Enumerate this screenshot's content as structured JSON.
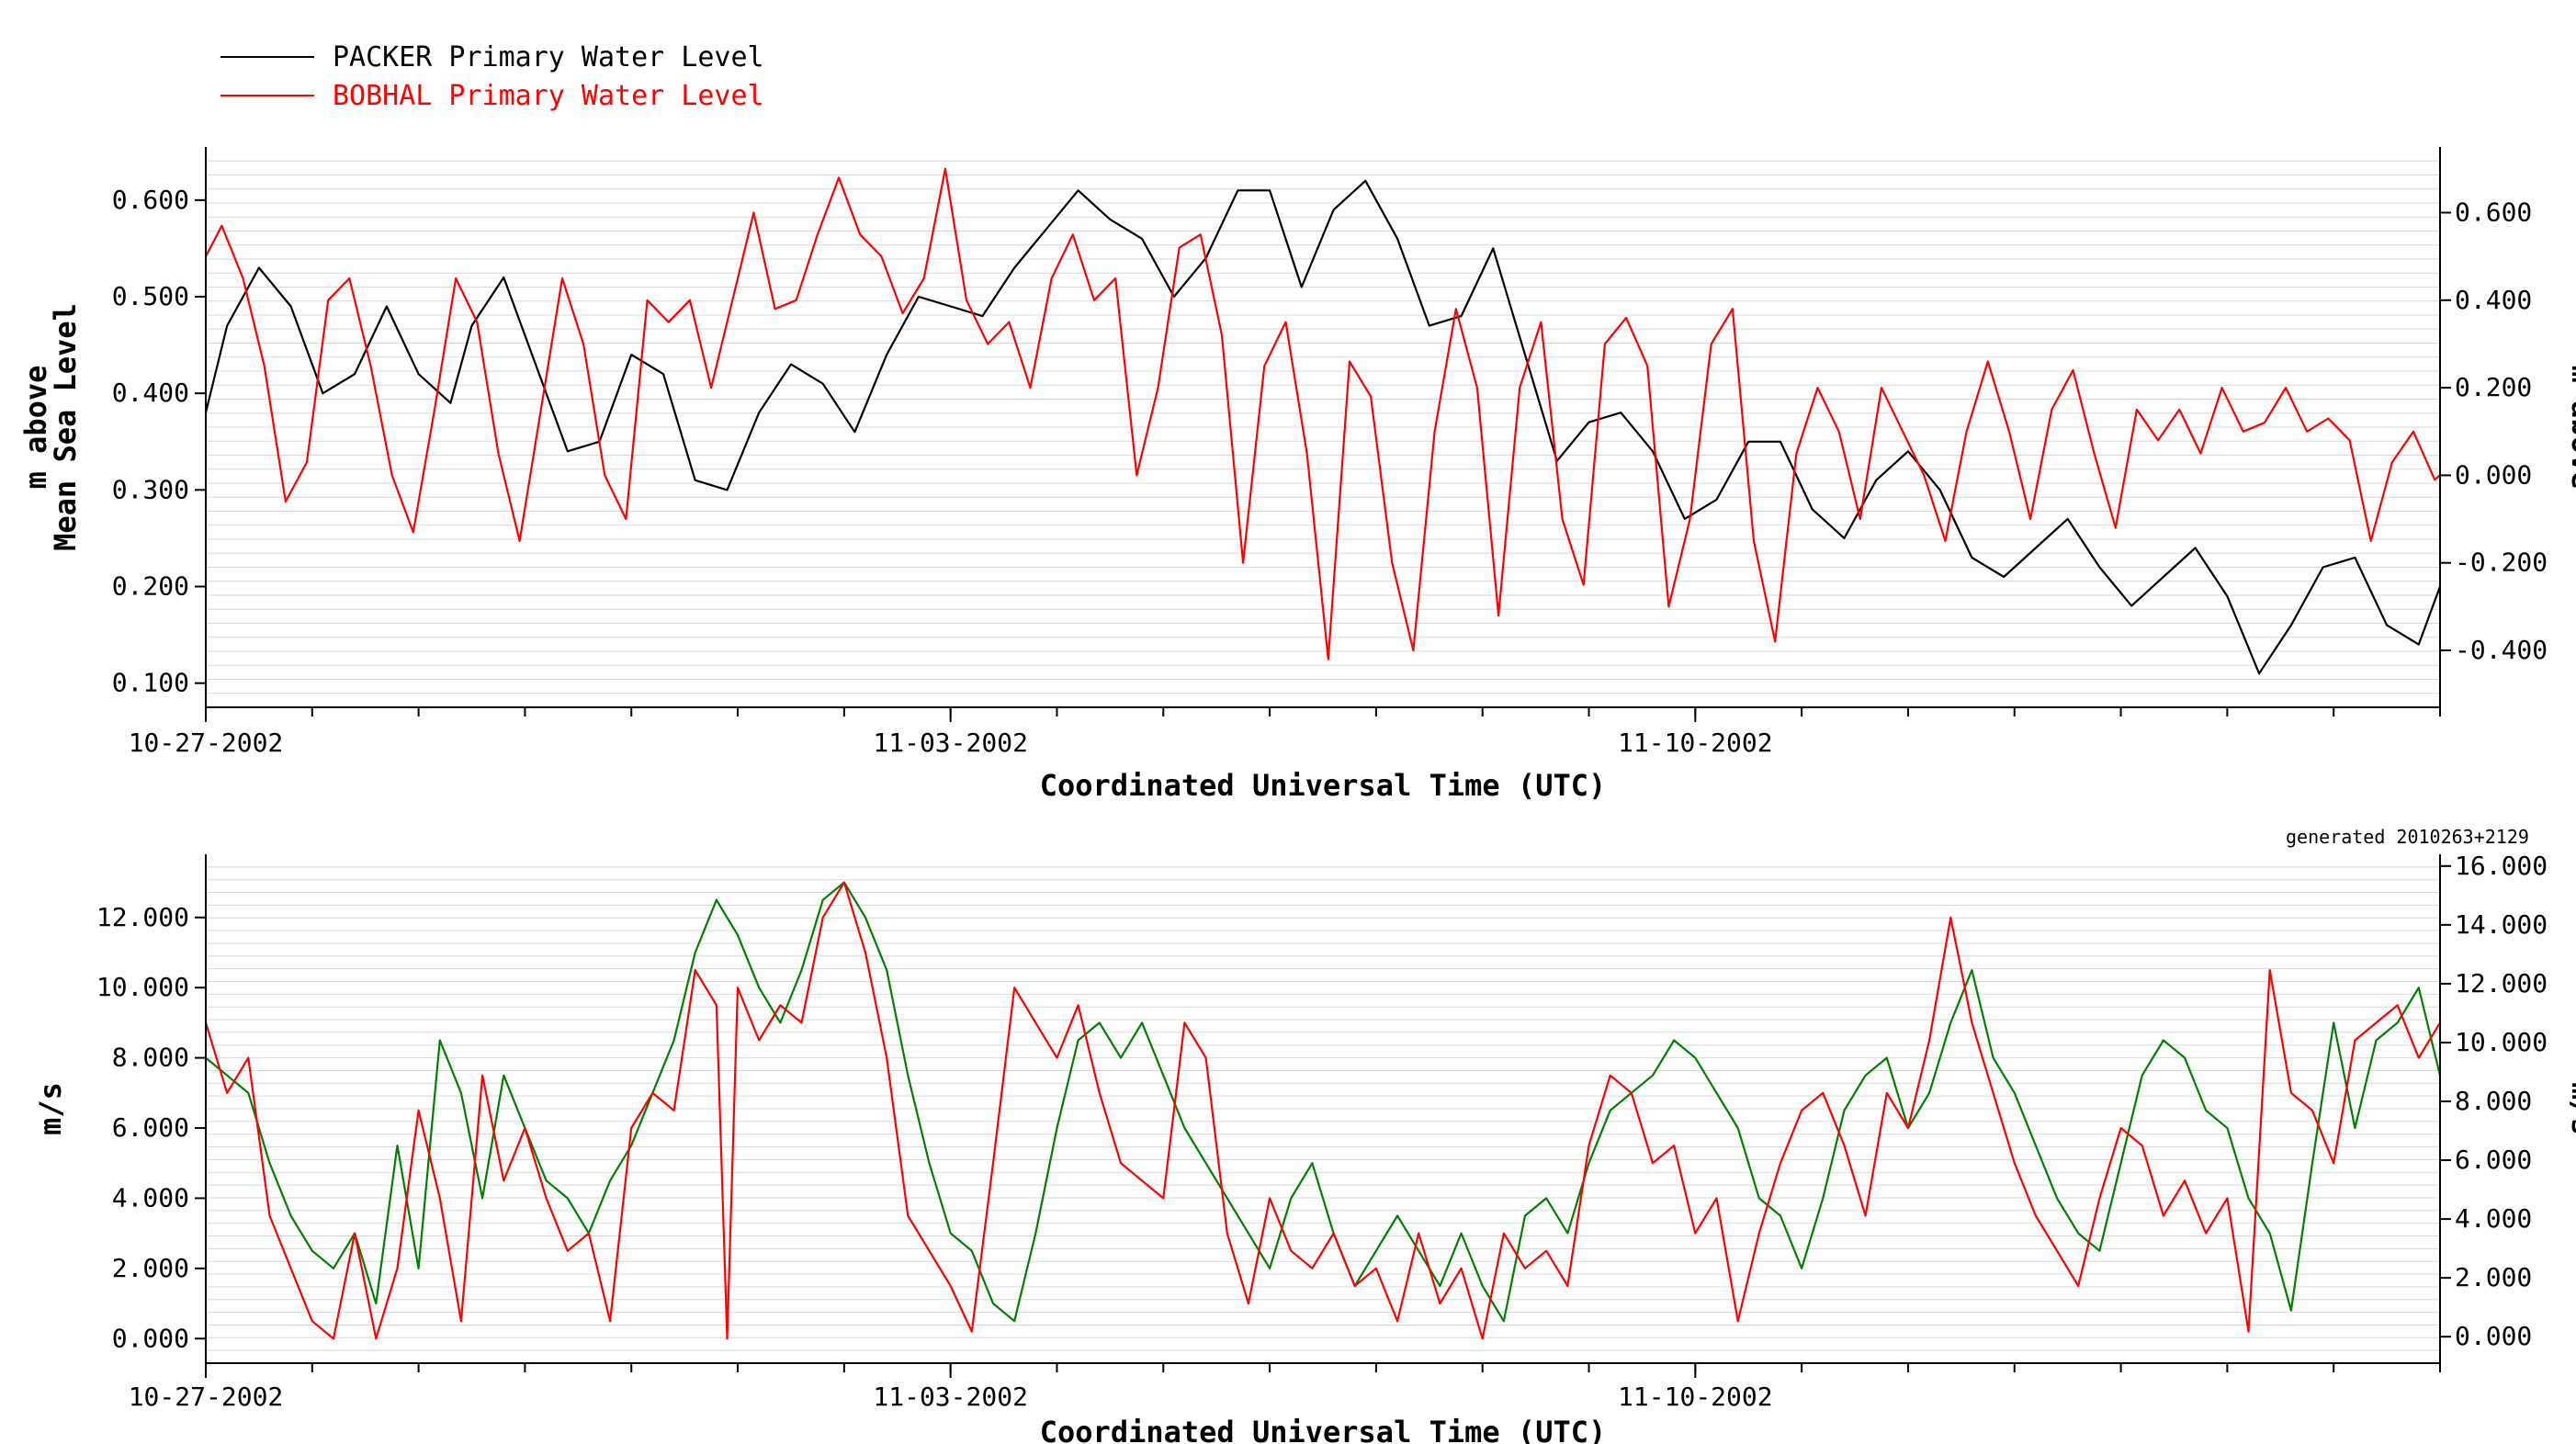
{
  "generated_note": "generated 2010263+2129",
  "colors": {
    "packer": "#000000",
    "bobhal": "#ff0000",
    "green": "#008000",
    "grid": "#d8d8d8",
    "axis": "#000000"
  },
  "legend": [
    {
      "label": "PACKER Primary Water Level",
      "color": "#000000"
    },
    {
      "label": "BOBHAL Primary Water Level",
      "color": "#ff0000"
    }
  ],
  "chart_data": [
    {
      "type": "line",
      "title": "",
      "xlabel": "Coordinated Universal Time (UTC)",
      "ylabel_left": [
        "m above",
        "Mean Sea Level"
      ],
      "ylabel_right": "m above",
      "xlim": [
        0,
        21
      ],
      "ylim_left": [
        0.075,
        0.655
      ],
      "ylim_right": [
        -0.53,
        0.75
      ],
      "x_tick_labels": [
        {
          "x": 0,
          "label": "10-27-2002"
        },
        {
          "x": 7,
          "label": "11-03-2002"
        },
        {
          "x": 14,
          "label": "11-10-2002"
        }
      ],
      "y_ticks_left": [
        {
          "v": 0.1,
          "label": "0.100"
        },
        {
          "v": 0.2,
          "label": "0.200"
        },
        {
          "v": 0.3,
          "label": "0.300"
        },
        {
          "v": 0.4,
          "label": "0.400"
        },
        {
          "v": 0.5,
          "label": "0.500"
        },
        {
          "v": 0.6,
          "label": "0.600"
        }
      ],
      "y_ticks_right": [
        {
          "v": -0.4,
          "label": "-0.400"
        },
        {
          "v": -0.2,
          "label": "-0.200"
        },
        {
          "v": 0.0,
          "label": "0.000"
        },
        {
          "v": 0.2,
          "label": "0.200"
        },
        {
          "v": 0.4,
          "label": "0.400"
        },
        {
          "v": 0.6,
          "label": "0.600"
        }
      ],
      "grid": true,
      "series": [
        {
          "name": "PACKER Primary Water Level",
          "axis": "left",
          "color": "#000000",
          "x": [
            0,
            0.2,
            0.5,
            0.8,
            1.1,
            1.4,
            1.7,
            2.0,
            2.3,
            2.5,
            2.8,
            3.1,
            3.4,
            3.7,
            4.0,
            4.3,
            4.6,
            4.9,
            5.2,
            5.5,
            5.8,
            6.1,
            6.4,
            6.7,
            7.0,
            7.3,
            7.6,
            7.9,
            8.2,
            8.5,
            8.8,
            9.1,
            9.4,
            9.7,
            10.0,
            10.3,
            10.6,
            10.9,
            11.2,
            11.5,
            11.8,
            12.1,
            12.4,
            12.7,
            13.0,
            13.3,
            13.6,
            13.9,
            14.2,
            14.5,
            14.8,
            15.1,
            15.4,
            15.7,
            16.0,
            16.3,
            16.6,
            16.9,
            17.2,
            17.5,
            17.8,
            18.1,
            18.4,
            18.7,
            19.0,
            19.3,
            19.6,
            19.9,
            20.2,
            20.5,
            20.8,
            21.0
          ],
          "y": [
            0.38,
            0.47,
            0.53,
            0.49,
            0.4,
            0.42,
            0.49,
            0.42,
            0.39,
            0.47,
            0.52,
            0.43,
            0.34,
            0.35,
            0.44,
            0.42,
            0.31,
            0.3,
            0.38,
            0.43,
            0.41,
            0.36,
            0.44,
            0.5,
            0.49,
            0.48,
            0.53,
            0.57,
            0.61,
            0.58,
            0.56,
            0.5,
            0.54,
            0.61,
            0.61,
            0.51,
            0.59,
            0.62,
            0.56,
            0.47,
            0.48,
            0.55,
            0.44,
            0.33,
            0.37,
            0.38,
            0.34,
            0.27,
            0.29,
            0.35,
            0.35,
            0.28,
            0.25,
            0.31,
            0.34,
            0.3,
            0.23,
            0.21,
            0.24,
            0.27,
            0.22,
            0.18,
            0.21,
            0.24,
            0.19,
            0.11,
            0.16,
            0.22,
            0.23,
            0.16,
            0.14,
            0.2
          ]
        },
        {
          "name": "BOBHAL Primary Water Level",
          "axis": "right",
          "color": "#ff0000",
          "x": [
            0,
            0.15,
            0.35,
            0.55,
            0.75,
            0.95,
            1.15,
            1.35,
            1.55,
            1.75,
            1.95,
            2.15,
            2.35,
            2.55,
            2.75,
            2.95,
            3.15,
            3.35,
            3.55,
            3.75,
            3.95,
            4.15,
            4.35,
            4.55,
            4.75,
            4.95,
            5.15,
            5.35,
            5.55,
            5.75,
            5.95,
            6.15,
            6.35,
            6.55,
            6.75,
            6.95,
            7.15,
            7.35,
            7.55,
            7.75,
            7.95,
            8.15,
            8.35,
            8.55,
            8.75,
            8.95,
            9.15,
            9.35,
            9.55,
            9.75,
            9.95,
            10.15,
            10.35,
            10.55,
            10.75,
            10.95,
            11.15,
            11.35,
            11.55,
            11.75,
            11.95,
            12.15,
            12.35,
            12.55,
            12.75,
            12.95,
            13.15,
            13.35,
            13.55,
            13.75,
            13.95,
            14.15,
            14.35,
            14.55,
            14.75,
            14.95,
            15.15,
            15.35,
            15.55,
            15.75,
            15.95,
            16.15,
            16.35,
            16.55,
            16.75,
            16.95,
            17.15,
            17.35,
            17.55,
            17.75,
            17.95,
            18.15,
            18.35,
            18.55,
            18.75,
            18.95,
            19.15,
            19.35,
            19.55,
            19.75,
            19.95,
            20.15,
            20.35,
            20.55,
            20.75,
            20.95,
            21.0
          ],
          "y": [
            0.5,
            0.57,
            0.45,
            0.25,
            -0.06,
            0.03,
            0.4,
            0.45,
            0.25,
            0.0,
            -0.13,
            0.15,
            0.45,
            0.35,
            0.05,
            -0.15,
            0.15,
            0.45,
            0.3,
            0.0,
            -0.1,
            0.4,
            0.35,
            0.4,
            0.2,
            0.4,
            0.6,
            0.38,
            0.4,
            0.55,
            0.68,
            0.55,
            0.5,
            0.37,
            0.45,
            0.7,
            0.4,
            0.3,
            0.35,
            0.2,
            0.45,
            0.55,
            0.4,
            0.45,
            0.0,
            0.2,
            0.52,
            0.55,
            0.32,
            -0.2,
            0.25,
            0.35,
            0.05,
            -0.42,
            0.26,
            0.18,
            -0.2,
            -0.4,
            0.1,
            0.38,
            0.2,
            -0.32,
            0.2,
            0.35,
            -0.1,
            -0.25,
            0.3,
            0.36,
            0.25,
            -0.3,
            -0.1,
            0.3,
            0.38,
            -0.15,
            -0.38,
            0.05,
            0.2,
            0.1,
            -0.1,
            0.2,
            0.1,
            0.0,
            -0.15,
            0.1,
            0.26,
            0.1,
            -0.1,
            0.15,
            0.24,
            0.05,
            -0.12,
            0.15,
            0.08,
            0.15,
            0.05,
            0.2,
            0.1,
            0.12,
            0.2,
            0.1,
            0.13,
            0.08,
            -0.15,
            0.03,
            0.1,
            -0.01,
            0.0
          ]
        }
      ]
    },
    {
      "type": "line",
      "title": "",
      "xlabel": "Coordinated Universal Time (UTC)",
      "ylabel_left": [
        "m/s"
      ],
      "ylabel_right": "m/s",
      "xlim": [
        0,
        21
      ],
      "ylim_left": [
        -0.7,
        13.8
      ],
      "ylim_right": [
        -0.9,
        16.4
      ],
      "x_tick_labels": [
        {
          "x": 0,
          "label": "10-27-2002"
        },
        {
          "x": 7,
          "label": "11-03-2002"
        },
        {
          "x": 14,
          "label": "11-10-2002"
        }
      ],
      "y_ticks_left": [
        {
          "v": 0,
          "label": "0.000"
        },
        {
          "v": 2,
          "label": "2.000"
        },
        {
          "v": 4,
          "label": "4.000"
        },
        {
          "v": 6,
          "label": "6.000"
        },
        {
          "v": 8,
          "label": "8.000"
        },
        {
          "v": 10,
          "label": "10.000"
        },
        {
          "v": 12,
          "label": "12.000"
        }
      ],
      "y_ticks_right": [
        {
          "v": 0,
          "label": "0.000"
        },
        {
          "v": 2,
          "label": "2.000"
        },
        {
          "v": 4,
          "label": "4.000"
        },
        {
          "v": 6,
          "label": "6.000"
        },
        {
          "v": 8,
          "label": "8.000"
        },
        {
          "v": 10,
          "label": "10.000"
        },
        {
          "v": 12,
          "label": "12.000"
        },
        {
          "v": 14,
          "label": "14.000"
        },
        {
          "v": 16,
          "label": "16.000"
        }
      ],
      "grid": true,
      "series": [
        {
          "axis": "left",
          "color": "#008000",
          "x": [
            0,
            0.2,
            0.4,
            0.6,
            0.8,
            1.0,
            1.2,
            1.4,
            1.6,
            1.8,
            2.0,
            2.2,
            2.4,
            2.6,
            2.8,
            3.0,
            3.2,
            3.4,
            3.6,
            3.8,
            4.0,
            4.2,
            4.4,
            4.6,
            4.8,
            5.0,
            5.2,
            5.4,
            5.6,
            5.8,
            6.0,
            6.2,
            6.4,
            6.6,
            6.8,
            7.0,
            7.2,
            7.4,
            7.6,
            7.8,
            8.0,
            8.2,
            8.4,
            8.6,
            8.8,
            9.0,
            9.2,
            9.4,
            9.6,
            9.8,
            10.0,
            10.2,
            10.4,
            10.6,
            10.8,
            11.0,
            11.2,
            11.4,
            11.6,
            11.8,
            12.0,
            12.2,
            12.4,
            12.6,
            12.8,
            13.0,
            13.2,
            13.4,
            13.6,
            13.8,
            14.0,
            14.2,
            14.4,
            14.6,
            14.8,
            15.0,
            15.2,
            15.4,
            15.6,
            15.8,
            16.0,
            16.2,
            16.4,
            16.6,
            16.8,
            17.0,
            17.2,
            17.4,
            17.6,
            17.8,
            18.0,
            18.2,
            18.4,
            18.6,
            18.8,
            19.0,
            19.2,
            19.4,
            19.6,
            19.8,
            20.0,
            20.2,
            20.4,
            20.6,
            20.8,
            21.0
          ],
          "y": [
            8.0,
            7.5,
            7.0,
            5.0,
            3.5,
            2.5,
            2.0,
            3.0,
            1.0,
            5.5,
            2.0,
            8.5,
            7.0,
            4.0,
            7.5,
            6.0,
            4.5,
            4.0,
            3.0,
            4.5,
            5.5,
            7.0,
            8.5,
            11.0,
            12.5,
            11.5,
            10.0,
            9.0,
            10.5,
            12.5,
            13.0,
            12.0,
            10.5,
            7.5,
            5.0,
            3.0,
            2.5,
            1.0,
            0.5,
            3.0,
            6.0,
            8.5,
            9.0,
            8.0,
            9.0,
            7.5,
            6.0,
            5.0,
            4.0,
            3.0,
            2.0,
            4.0,
            5.0,
            3.0,
            1.5,
            2.5,
            3.5,
            2.5,
            1.5,
            3.0,
            1.5,
            0.5,
            3.5,
            4.0,
            3.0,
            5.0,
            6.5,
            7.0,
            7.5,
            8.5,
            8.0,
            7.0,
            6.0,
            4.0,
            3.5,
            2.0,
            4.0,
            6.5,
            7.5,
            8.0,
            6.0,
            7.0,
            9.0,
            10.5,
            8.0,
            7.0,
            5.5,
            4.0,
            3.0,
            2.5,
            5.0,
            7.5,
            8.5,
            8.0,
            6.5,
            6.0,
            4.0,
            3.0,
            0.8,
            5.0,
            9.0,
            6.0,
            8.5,
            9.0,
            10.0,
            7.5
          ]
        },
        {
          "axis": "left",
          "color": "#ff0000",
          "x": [
            0,
            0.2,
            0.4,
            0.6,
            0.8,
            1.0,
            1.2,
            1.4,
            1.6,
            1.8,
            2.0,
            2.2,
            2.4,
            2.6,
            2.8,
            3.0,
            3.2,
            3.4,
            3.6,
            3.8,
            4.0,
            4.2,
            4.4,
            4.6,
            4.8,
            4.9,
            5.0,
            5.2,
            5.4,
            5.6,
            5.8,
            6.0,
            6.2,
            6.4,
            6.6,
            6.8,
            7.0,
            7.2,
            7.4,
            7.6,
            7.8,
            8.0,
            8.2,
            8.4,
            8.6,
            8.8,
            9.0,
            9.2,
            9.4,
            9.6,
            9.8,
            10.0,
            10.2,
            10.4,
            10.6,
            10.8,
            11.0,
            11.2,
            11.4,
            11.6,
            11.8,
            12.0,
            12.2,
            12.4,
            12.6,
            12.8,
            13.0,
            13.2,
            13.4,
            13.6,
            13.8,
            14.0,
            14.2,
            14.4,
            14.6,
            14.8,
            15.0,
            15.2,
            15.4,
            15.6,
            15.8,
            16.0,
            16.2,
            16.4,
            16.6,
            16.8,
            17.0,
            17.2,
            17.4,
            17.6,
            17.8,
            18.0,
            18.2,
            18.4,
            18.6,
            18.8,
            19.0,
            19.2,
            19.4,
            19.6,
            19.8,
            20.0,
            20.2,
            20.4,
            20.6,
            20.8,
            21.0
          ],
          "y": [
            9.0,
            7.0,
            8.0,
            3.5,
            2.0,
            0.5,
            0.0,
            3.0,
            0.0,
            2.0,
            6.5,
            4.0,
            0.5,
            7.5,
            4.5,
            6.0,
            4.0,
            2.5,
            3.0,
            0.5,
            6.0,
            7.0,
            6.5,
            10.5,
            9.5,
            0.0,
            10.0,
            8.5,
            9.5,
            9.0,
            12.0,
            13.0,
            11.0,
            8.0,
            3.5,
            2.5,
            1.5,
            0.2,
            5.0,
            10.0,
            9.0,
            8.0,
            9.5,
            7.0,
            5.0,
            4.5,
            4.0,
            9.0,
            8.0,
            3.0,
            1.0,
            4.0,
            2.5,
            2.0,
            3.0,
            1.5,
            2.0,
            0.5,
            3.0,
            1.0,
            2.0,
            0.0,
            3.0,
            2.0,
            2.5,
            1.5,
            5.5,
            7.5,
            7.0,
            5.0,
            5.5,
            3.0,
            4.0,
            0.5,
            3.0,
            5.0,
            6.5,
            7.0,
            5.5,
            3.5,
            7.0,
            6.0,
            8.5,
            12.0,
            9.0,
            7.0,
            5.0,
            3.5,
            2.5,
            1.5,
            4.0,
            6.0,
            5.5,
            3.5,
            4.5,
            3.0,
            4.0,
            0.2,
            10.5,
            7.0,
            6.5,
            5.0,
            8.5,
            9.0,
            9.5,
            8.0,
            9.0
          ]
        }
      ]
    }
  ]
}
